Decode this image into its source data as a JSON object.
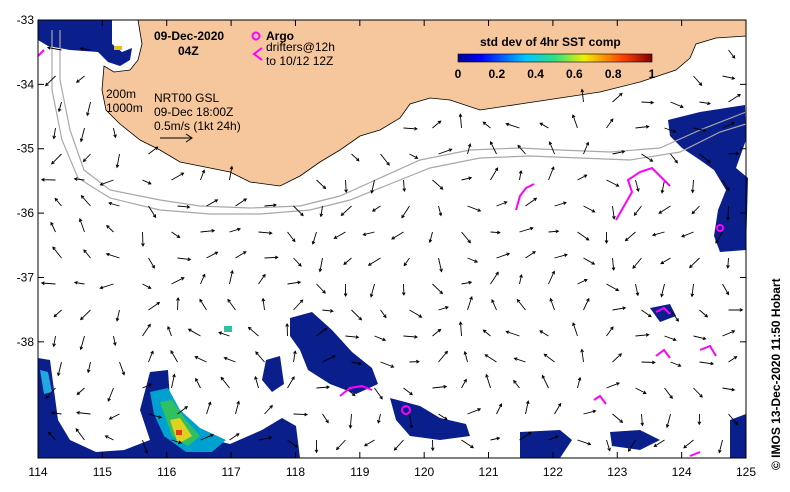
{
  "date": "09-Dec-2020",
  "time": "04Z",
  "argo_label": "Argo",
  "drifter_label_1": "drifters@12h",
  "drifter_label_2": "to 10/12 12Z",
  "isobath_1": "200m",
  "isobath_2": "1000m",
  "product": "NRT00 GSL",
  "product_time": "09-Dec 18:00Z",
  "scale_label": "0.5m/s (1kt 24h)",
  "colorbar": {
    "title": "std dev of 4hr SST comp",
    "ticks": [
      "0",
      "0.2",
      "0.4",
      "0.6",
      "0.8",
      "1"
    ]
  },
  "x_ticks": [
    "114",
    "115",
    "116",
    "117",
    "118",
    "119",
    "120",
    "121",
    "122",
    "123",
    "124",
    "125"
  ],
  "y_ticks": [
    "-33",
    "-34",
    "-35",
    "-36",
    "-37",
    "-38"
  ],
  "credit": "© IMOS 13-Dec-2020 11:50 Hobart",
  "colors": {
    "land": "#f6c69c",
    "drifter": "#ff00ff",
    "sst_low": "#000080",
    "sst_mid": "#00c8ff",
    "sst_high": "#800000",
    "isobath": "#aaaaaa"
  }
}
